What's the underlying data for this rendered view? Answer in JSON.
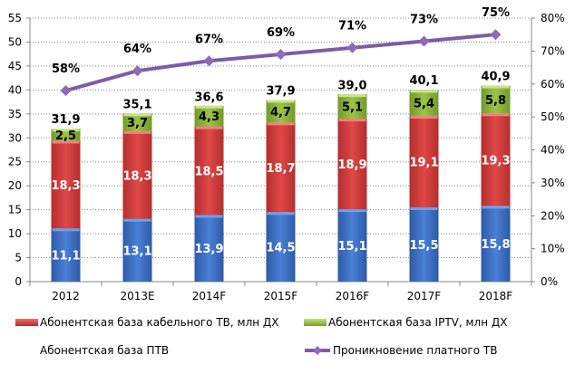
{
  "chart_data": {
    "type": "bar",
    "stacked": true,
    "categories": [
      "2012",
      "2013E",
      "2014F",
      "2015F",
      "2016F",
      "2017F",
      "2018F"
    ],
    "series": [
      {
        "name": "Абонентская база ПТВ",
        "values": [
          11.1,
          13.1,
          13.9,
          14.5,
          15.1,
          15.5,
          15.8
        ],
        "labels": [
          "11,1",
          "13,1",
          "13,9",
          "14,5",
          "15,1",
          "15,5",
          "15,8"
        ],
        "color": "#3A6FC4"
      },
      {
        "name": "Абонентская база кабельного ТВ, млн ДХ",
        "values": [
          18.3,
          18.3,
          18.5,
          18.7,
          18.9,
          19.1,
          19.3
        ],
        "labels": [
          "18,3",
          "18,3",
          "18,5",
          "18,7",
          "18,9",
          "19,1",
          "19,3"
        ],
        "color": "#D13B3B"
      },
      {
        "name": "Абонентская база IPTV, млн ДХ",
        "values": [
          2.5,
          3.7,
          4.3,
          4.7,
          5.1,
          5.4,
          5.8
        ],
        "labels": [
          "2,5",
          "3,7",
          "4,3",
          "4,7",
          "5,1",
          "5,4",
          "5,8"
        ],
        "color": "#8DB33A"
      }
    ],
    "totals": {
      "values": [
        31.9,
        35.1,
        36.6,
        37.9,
        39.0,
        40.1,
        40.9
      ],
      "labels": [
        "31,9",
        "35,1",
        "36,6",
        "37,9",
        "39,0",
        "40,1",
        "40,9"
      ]
    },
    "line": {
      "name": "Проникновение платного ТВ",
      "values": [
        58,
        64,
        67,
        69,
        71,
        73,
        75
      ],
      "labels": [
        "58%",
        "64%",
        "67%",
        "69%",
        "71%",
        "73%",
        "75%"
      ],
      "color": "#7E5BA6",
      "axis": "right"
    },
    "ylim": [
      0,
      55
    ],
    "y_ticks": [
      "0",
      "5",
      "10",
      "15",
      "20",
      "25",
      "30",
      "35",
      "40",
      "45",
      "50",
      "55"
    ],
    "y2lim": [
      0,
      80
    ],
    "y2_ticks": [
      "0%",
      "10%",
      "20%",
      "30%",
      "40%",
      "50%",
      "60%",
      "70%",
      "80%"
    ],
    "grid": true,
    "legend_position": "bottom"
  },
  "legend": [
    {
      "label": "Абонентская база кабельного ТВ, млн ДХ",
      "color": "#D13B3B"
    },
    {
      "label": "Абонентская база IPTV, млн ДХ",
      "color": "#8DB33A"
    },
    {
      "label": "Абонентская база ПТВ",
      "color": ""
    },
    {
      "label": "Проникновение платного ТВ",
      "color": "#7E5BA6"
    }
  ]
}
